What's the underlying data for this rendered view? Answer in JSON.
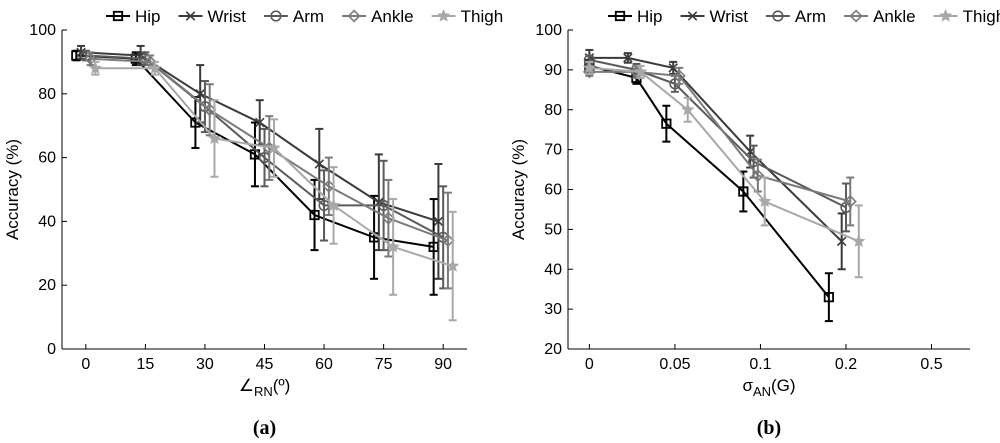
{
  "chart_data": [
    {
      "type": "line",
      "panel_label": "(a)",
      "panel_letter": "a",
      "xlabel": "∠",
      "xlabel_sub": "RN",
      "xlabel_suffix": "(º)",
      "ylabel": "Accuracy (%)",
      "categories": [
        "0",
        "15",
        "30",
        "45",
        "60",
        "75",
        "90"
      ],
      "x": [
        0,
        15,
        30,
        45,
        60,
        75,
        90
      ],
      "xlim": [
        -6,
        96
      ],
      "ylim": [
        0,
        100
      ],
      "yticks": [
        "0",
        "20",
        "40",
        "60",
        "80",
        "100"
      ],
      "ytick_values": [
        0,
        20,
        40,
        60,
        80,
        100
      ],
      "series": [
        {
          "name": "Hip",
          "marker": "square",
          "color": "#000000",
          "offset": -2,
          "values": [
            92,
            91,
            71,
            61,
            42,
            35,
            32
          ],
          "errors": [
            1.5,
            2,
            8,
            10,
            11,
            13,
            15
          ]
        },
        {
          "name": "Wrist",
          "marker": "x",
          "color": "#3a3a3a",
          "offset": -1,
          "values": [
            93,
            92,
            80,
            71,
            58,
            46,
            40
          ],
          "errors": [
            2,
            3,
            9,
            7,
            11,
            15,
            18
          ]
        },
        {
          "name": "Arm",
          "marker": "circle",
          "color": "#5a5a5a",
          "offset": 0,
          "values": [
            92,
            91,
            76,
            60,
            45,
            45,
            35
          ],
          "errors": [
            1.5,
            2,
            8,
            9,
            11,
            14,
            16
          ]
        },
        {
          "name": "Ankle",
          "marker": "diamond",
          "color": "#7a7a7a",
          "offset": 1,
          "values": [
            91,
            90,
            75,
            63,
            51,
            41,
            34
          ],
          "errors": [
            2,
            2,
            8,
            10,
            9,
            12,
            15
          ]
        },
        {
          "name": "Thigh",
          "marker": "star",
          "color": "#a8a8a8",
          "offset": 2,
          "values": [
            88,
            88,
            66,
            63,
            45,
            32,
            26
          ],
          "errors": [
            2,
            2,
            12,
            9,
            12,
            15,
            17
          ]
        }
      ]
    },
    {
      "type": "line",
      "panel_label": "(b)",
      "panel_letter": "b",
      "xlabel": "σ",
      "xlabel_sub": "AN",
      "xlabel_suffix": "(G)",
      "ylabel": "Accuracy (%)",
      "categories": [
        "0",
        "0.05",
        "0.1",
        "0.2",
        "0.5"
      ],
      "x": [
        0,
        1,
        2,
        3,
        4
      ],
      "xlim": [
        -0.25,
        4.45
      ],
      "ylim": [
        20,
        100
      ],
      "yticks": [
        "20",
        "30",
        "40",
        "50",
        "60",
        "70",
        "80",
        "90",
        "100"
      ],
      "ytick_values": [
        20,
        30,
        40,
        50,
        60,
        70,
        80,
        90,
        100
      ],
      "series": [
        {
          "name": "Hip",
          "marker": "square",
          "color": "#000000",
          "xpos": [
            0,
            0.55,
            0.9,
            1.8,
            2.8
          ],
          "values": [
            91,
            88,
            76.5,
            59.5,
            33
          ],
          "errors": [
            1.5,
            1.5,
            4.5,
            5,
            6
          ]
        },
        {
          "name": "Wrist",
          "marker": "x",
          "color": "#3a3a3a",
          "xpos": [
            0,
            0.45,
            0.98,
            1.88,
            2.95
          ],
          "values": [
            93,
            93,
            90.5,
            69.5,
            47
          ],
          "errors": [
            2,
            1.2,
            1.5,
            4,
            7
          ]
        },
        {
          "name": "Arm",
          "marker": "circle",
          "color": "#5a5a5a",
          "xpos": [
            0,
            0.55,
            1.0,
            1.92,
            3.0
          ],
          "values": [
            92.5,
            90,
            86.5,
            67,
            55.5
          ],
          "errors": [
            1,
            1.5,
            2,
            4,
            6
          ]
        },
        {
          "name": "Ankle",
          "marker": "diamond",
          "color": "#7a7a7a",
          "xpos": [
            0,
            0.55,
            1.05,
            1.97,
            3.05
          ],
          "values": [
            89.5,
            89.5,
            88.5,
            63.5,
            57
          ],
          "errors": [
            1,
            1.5,
            2,
            4,
            6
          ]
        },
        {
          "name": "Thigh",
          "marker": "star",
          "color": "#a8a8a8",
          "xpos": [
            0,
            0.6,
            1.15,
            2.05,
            3.15
          ],
          "values": [
            90.5,
            89.5,
            80,
            57,
            47
          ],
          "errors": [
            1.5,
            1.5,
            3,
            6,
            9
          ]
        }
      ]
    }
  ]
}
